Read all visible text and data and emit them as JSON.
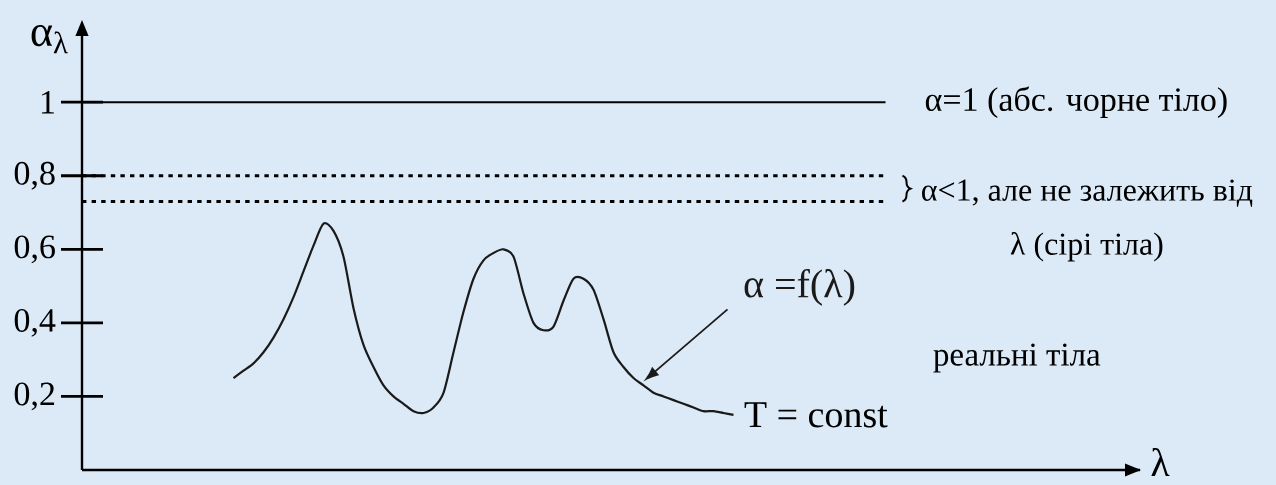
{
  "chart_data": {
    "type": "line",
    "ylabel": "α$_{λ}$",
    "categories": [
      null,
      null,
      null,
      null,
      null,
      null,
      null,
      null,
      null,
      null,
      null,
      null,
      null,
      null,
      null,
      null,
      null,
      null,
      null,
      null,
      null,
      null,
      null,
      null,
      null,
      null,
      null,
      null,
      null,
      null,
      null,
      null,
      null,
      null,
      null,
      null,
      null,
      null,
      null,
      null,
      null,
      null,
      null,
      null,
      null,
      null,
      null,
      null,
      null,
      null,
      null
    ],
    "series": [
      {
        "name": "α =f(λ)",
        "color": "#1a1a1a",
        "values": [
          0.25,
          0.27,
          0.29,
          0.32,
          0.36,
          0.41,
          0.47,
          0.54,
          0.61,
          0.67,
          0.65,
          0.58,
          0.44,
          0.34,
          0.28,
          0.23,
          0.2,
          0.18,
          0.16,
          0.155,
          0.17,
          0.21,
          0.32,
          0.43,
          0.52,
          0.57,
          0.59,
          0.6,
          0.58,
          0.48,
          0.4,
          0.38,
          0.39,
          0.46,
          0.52,
          0.52,
          0.49,
          0.41,
          0.32,
          0.28,
          0.25,
          0.23,
          0.21,
          0.2,
          0.19,
          0.18,
          0.17,
          0.16,
          0.16,
          0.155,
          0.15
        ]
      }
    ],
    "ylim": [
      0,
      1.18
    ],
    "yticks": [
      {
        "value": 0.2,
        "label": "0,2"
      },
      {
        "value": 0.4,
        "label": "0,4"
      },
      {
        "value": 0.6,
        "label": "0,6"
      },
      {
        "value": 0.8,
        "label": "0,8"
      },
      1
    ],
    "ref_lines": [
      {
        "axis": "y",
        "value": 1,
        "label": "α=1 (абс. чорне тіло)"
      },
      {
        "axis": "y",
        "value": 0.8,
        "line_style": "dotted"
      },
      {
        "axis": "y",
        "value": 0.73,
        "line_style": "dotted"
      }
    ],
    "annotations": [
      "α<1, але не залежить від λ (сірі тіла)",
      "T = const",
      "реальні тіла",
      "λ"
    ],
    "tick_labels": "y",
    "legend": false
  }
}
